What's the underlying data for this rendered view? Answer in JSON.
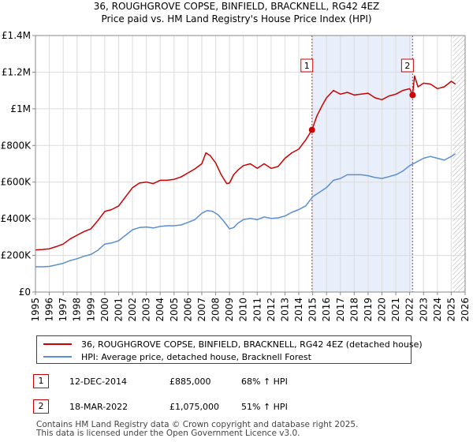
{
  "chart_data": {
    "type": "line",
    "title": "36, ROUGHGROVE COPSE, BINFIELD, BRACKNELL, RG42 4EZ",
    "subtitle": "Price paid vs. HM Land Registry's House Price Index (HPI)",
    "xlabel": "",
    "ylabel": "",
    "xlim": [
      1995,
      2026
    ],
    "ylim": [
      0,
      1400000
    ],
    "x_ticks": [
      "1995",
      "1996",
      "1997",
      "1998",
      "1999",
      "2000",
      "2001",
      "2002",
      "2003",
      "2004",
      "2005",
      "2006",
      "2007",
      "2008",
      "2009",
      "2010",
      "2011",
      "2012",
      "2013",
      "2014",
      "2015",
      "2016",
      "2017",
      "2018",
      "2019",
      "2020",
      "2021",
      "2022",
      "2023",
      "2024",
      "2025",
      "2026"
    ],
    "y_ticks": [
      {
        "value": 0,
        "label": "£0"
      },
      {
        "value": 200000,
        "label": "£200K"
      },
      {
        "value": 400000,
        "label": "£400K"
      },
      {
        "value": 600000,
        "label": "£600K"
      },
      {
        "value": 800000,
        "label": "£800K"
      },
      {
        "value": 1000000,
        "label": "£1M"
      },
      {
        "value": 1200000,
        "label": "£1.2M"
      },
      {
        "value": 1400000,
        "label": "£1.4M"
      }
    ],
    "grid": true,
    "shaded_period": [
      2014.95,
      2022.21
    ],
    "forecast_hatch_from": 2025.1,
    "series": [
      {
        "name": "36, ROUGHGROVE COPSE, BINFIELD, BRACKNELL, RG42 4EZ (detached house)",
        "color": "#cc0000",
        "x": [
          1995.0,
          1995.5,
          1996.0,
          1996.5,
          1997.0,
          1997.5,
          1998.0,
          1998.5,
          1999.0,
          1999.5,
          2000.0,
          2000.5,
          2001.0,
          2001.5,
          2002.0,
          2002.5,
          2003.0,
          2003.5,
          2004.0,
          2004.5,
          2005.0,
          2005.5,
          2006.0,
          2006.5,
          2007.0,
          2007.3,
          2007.6,
          2008.0,
          2008.4,
          2008.8,
          2009.0,
          2009.3,
          2009.6,
          2010.0,
          2010.5,
          2011.0,
          2011.5,
          2012.0,
          2012.5,
          2013.0,
          2013.5,
          2014.0,
          2014.5,
          2014.95,
          2015.3,
          2015.7,
          2016.0,
          2016.5,
          2017.0,
          2017.5,
          2018.0,
          2018.5,
          2019.0,
          2019.5,
          2020.0,
          2020.5,
          2021.0,
          2021.5,
          2022.0,
          2022.21,
          2022.35,
          2022.6,
          2023.0,
          2023.5,
          2024.0,
          2024.5,
          2025.0,
          2025.3
        ],
        "y": [
          230000,
          232000,
          236000,
          248000,
          262000,
          290000,
          310000,
          330000,
          345000,
          390000,
          440000,
          450000,
          470000,
          520000,
          570000,
          595000,
          600000,
          592000,
          610000,
          610000,
          615000,
          628000,
          650000,
          672000,
          700000,
          760000,
          745000,
          705000,
          640000,
          592000,
          595000,
          640000,
          665000,
          690000,
          700000,
          675000,
          700000,
          675000,
          685000,
          730000,
          760000,
          780000,
          830000,
          885000,
          960000,
          1020000,
          1060000,
          1100000,
          1080000,
          1090000,
          1075000,
          1080000,
          1085000,
          1060000,
          1050000,
          1070000,
          1080000,
          1100000,
          1110000,
          1075000,
          1180000,
          1120000,
          1140000,
          1135000,
          1110000,
          1120000,
          1150000,
          1135000
        ]
      },
      {
        "name": "HPI: Average price, detached house, Bracknell Forest",
        "color": "#5b8fcf",
        "x": [
          1995.0,
          1995.5,
          1996.0,
          1996.5,
          1997.0,
          1997.5,
          1998.0,
          1998.5,
          1999.0,
          1999.5,
          2000.0,
          2000.5,
          2001.0,
          2001.5,
          2002.0,
          2002.5,
          2003.0,
          2003.5,
          2004.0,
          2004.5,
          2005.0,
          2005.5,
          2006.0,
          2006.5,
          2007.0,
          2007.4,
          2007.8,
          2008.2,
          2008.6,
          2009.0,
          2009.3,
          2009.6,
          2010.0,
          2010.5,
          2011.0,
          2011.5,
          2012.0,
          2012.5,
          2013.0,
          2013.5,
          2014.0,
          2014.5,
          2015.0,
          2015.5,
          2016.0,
          2016.5,
          2017.0,
          2017.5,
          2018.0,
          2018.5,
          2019.0,
          2019.5,
          2020.0,
          2020.5,
          2021.0,
          2021.5,
          2022.0,
          2022.5,
          2023.0,
          2023.5,
          2024.0,
          2024.5,
          2025.0,
          2025.3
        ],
        "y": [
          138000,
          138000,
          140000,
          148000,
          157000,
          172000,
          182000,
          195000,
          205000,
          228000,
          262000,
          268000,
          280000,
          310000,
          340000,
          352000,
          355000,
          350000,
          358000,
          362000,
          362000,
          366000,
          380000,
          395000,
          430000,
          445000,
          440000,
          420000,
          385000,
          345000,
          352000,
          375000,
          395000,
          402000,
          395000,
          410000,
          402000,
          405000,
          415000,
          435000,
          450000,
          470000,
          520000,
          545000,
          570000,
          610000,
          620000,
          640000,
          640000,
          640000,
          635000,
          625000,
          620000,
          630000,
          640000,
          660000,
          690000,
          710000,
          730000,
          740000,
          730000,
          720000,
          740000,
          755000
        ]
      }
    ],
    "sales": [
      {
        "id": "1",
        "x": 2014.95,
        "y": 885000,
        "date": "12-DEC-2014",
        "price": "£885,000",
        "hpi": "68% ↑ HPI"
      },
      {
        "id": "2",
        "x": 2022.21,
        "y": 1075000,
        "date": "18-MAR-2022",
        "price": "£1,075,000",
        "hpi": "51% ↑ HPI"
      }
    ]
  },
  "footer": {
    "line1": "Contains HM Land Registry data © Crown copyright and database right 2025.",
    "line2": "This data is licensed under the Open Government Licence v3.0."
  }
}
